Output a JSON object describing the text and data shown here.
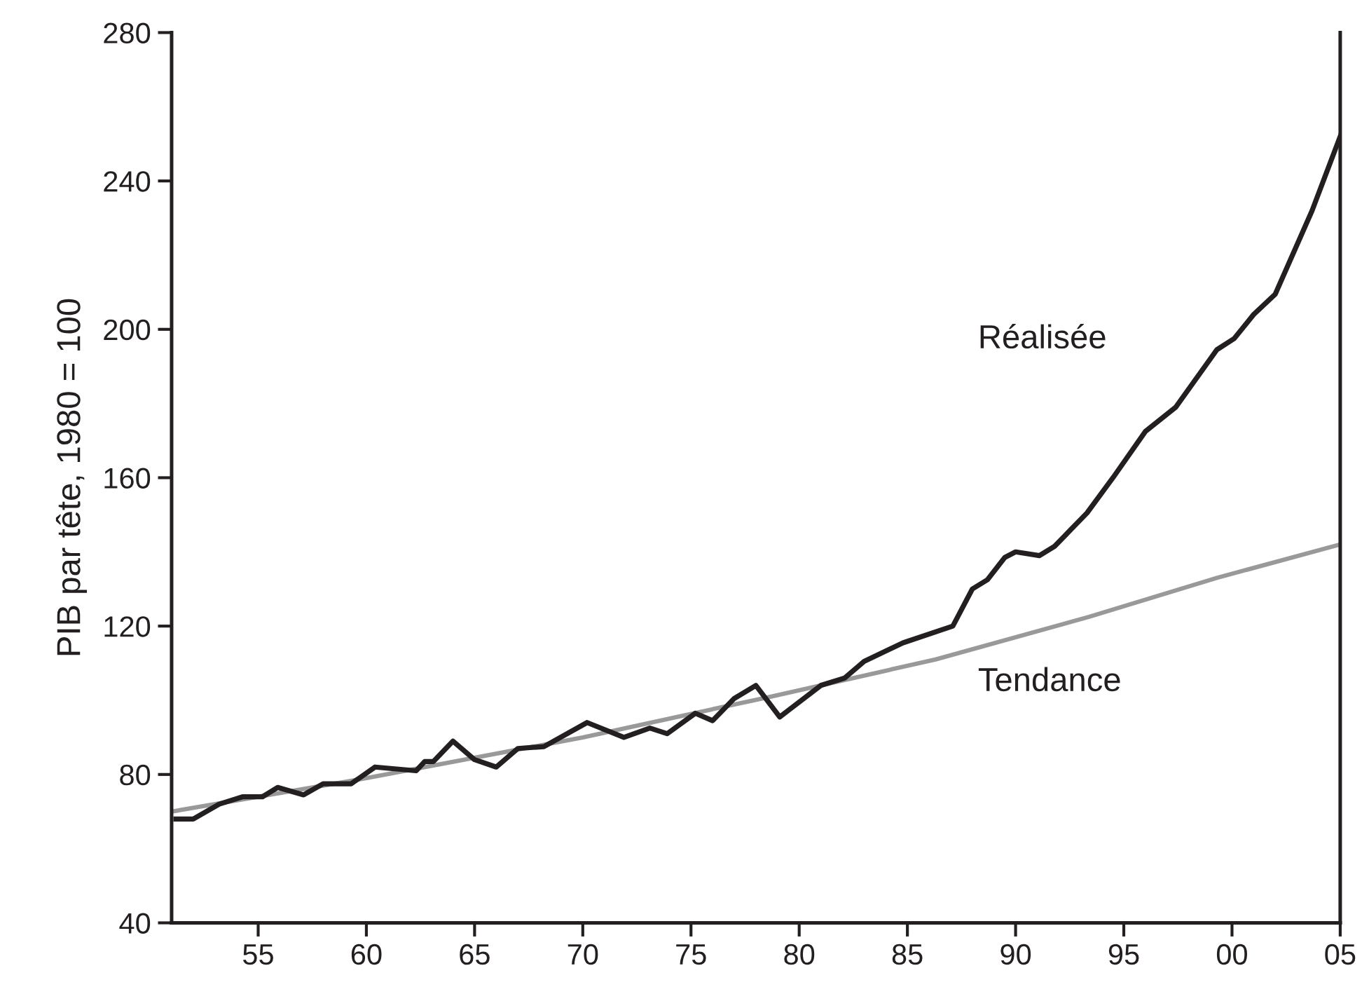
{
  "chart_data": {
    "type": "line",
    "ylabel": "PIB par tête, 1980 = 100",
    "xlim": [
      1951,
      2005
    ],
    "ylim": [
      40,
      280
    ],
    "xticks": [
      {
        "value": 1955,
        "label": "55"
      },
      {
        "value": 1960,
        "label": "60"
      },
      {
        "value": 1965,
        "label": "65"
      },
      {
        "value": 1970,
        "label": "70"
      },
      {
        "value": 1975,
        "label": "75"
      },
      {
        "value": 1980,
        "label": "80"
      },
      {
        "value": 1985,
        "label": "85"
      },
      {
        "value": 1990,
        "label": "90"
      },
      {
        "value": 1995,
        "label": "95"
      },
      {
        "value": 2000,
        "label": "00"
      },
      {
        "value": 2005,
        "label": "05"
      }
    ],
    "yticks": [
      40,
      80,
      120,
      160,
      200,
      240,
      280
    ],
    "grid": false,
    "legend": false,
    "marker": "none",
    "line_style": "solid",
    "series": [
      {
        "name": "Réalisée",
        "color": "#231f20",
        "x": [
          1951.2,
          1952.0,
          1953.2,
          1954.3,
          1955.2,
          1955.9,
          1957.1,
          1958.0,
          1959.3,
          1960.4,
          1962.3,
          1962.7,
          1963.1,
          1964.0,
          1965.0,
          1966.0,
          1967.0,
          1968.2,
          1970.2,
          1971.9,
          1973.1,
          1973.9,
          1975.2,
          1976.0,
          1977.0,
          1978.0,
          1979.1,
          1981.0,
          1982.1,
          1983.0,
          1984.8,
          1987.1,
          1988.0,
          1988.7,
          1989.5,
          1990.0,
          1991.1,
          1991.8,
          1993.3,
          1994.5,
          1996.0,
          1997.4,
          1999.3,
          2000.1,
          2001.0,
          2002.0,
          2003.7,
          2005.0
        ],
        "values": [
          68,
          68,
          72,
          74,
          74,
          76.5,
          74.5,
          77.5,
          77.5,
          82,
          81,
          83.5,
          83.5,
          89,
          84,
          82,
          87,
          87.5,
          94,
          90,
          92.5,
          91,
          96.5,
          94.5,
          100.5,
          104,
          95.5,
          104,
          106,
          110.5,
          115.5,
          120,
          130,
          132.5,
          138.5,
          140,
          139,
          141.5,
          150.5,
          160,
          172.5,
          179,
          194.5,
          197.5,
          204,
          209.5,
          232,
          252
        ]
      },
      {
        "name": "Tendance",
        "color": "#999999",
        "x": [
          1951,
          1960,
          1970,
          1978.7,
          1986.3,
          1993.4,
          1999.3,
          2005
        ],
        "values": [
          70,
          79,
          90,
          101,
          111,
          122.5,
          133,
          142
        ]
      }
    ]
  }
}
